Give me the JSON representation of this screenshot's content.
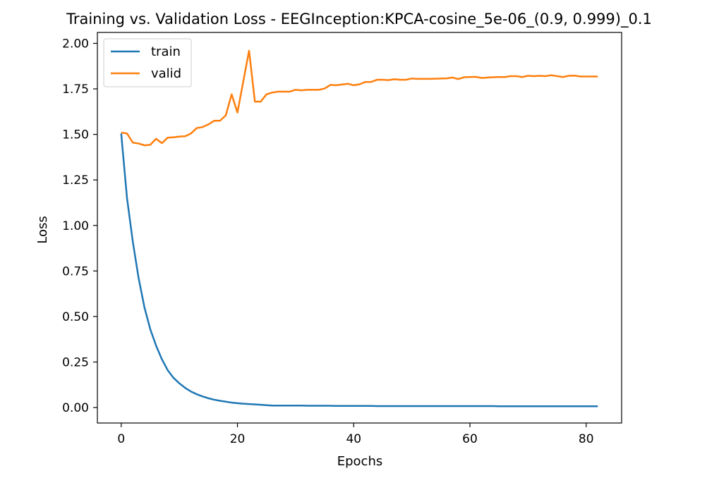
{
  "chart_data": {
    "type": "line",
    "title": "Training vs. Validation Loss - EEGInception:KPCA-cosine_5e-06_(0.9, 0.999)_0.1",
    "xlabel": "Epochs",
    "ylabel": "Loss",
    "xlim": [
      -4.1,
      86.1
    ],
    "ylim": [
      -0.085,
      2.06
    ],
    "x_ticks": [
      0,
      20,
      40,
      60,
      80
    ],
    "x_tick_labels": [
      "0",
      "20",
      "40",
      "60",
      "80"
    ],
    "y_ticks": [
      0.0,
      0.25,
      0.5,
      0.75,
      1.0,
      1.25,
      1.5,
      1.75,
      2.0
    ],
    "y_tick_labels": [
      "0.00",
      "0.25",
      "0.50",
      "0.75",
      "1.00",
      "1.25",
      "1.50",
      "1.75",
      "2.00"
    ],
    "grid": false,
    "legend_position": "top-left",
    "series": [
      {
        "name": "train",
        "color": "#1f77b4",
        "values": [
          1.505,
          1.15,
          0.91,
          0.71,
          0.55,
          0.43,
          0.34,
          0.265,
          0.205,
          0.163,
          0.133,
          0.108,
          0.088,
          0.073,
          0.061,
          0.051,
          0.043,
          0.037,
          0.032,
          0.027,
          0.024,
          0.021,
          0.019,
          0.017,
          0.015,
          0.013,
          0.011,
          0.011,
          0.011,
          0.011,
          0.011,
          0.011,
          0.01,
          0.01,
          0.01,
          0.01,
          0.01,
          0.009,
          0.009,
          0.009,
          0.009,
          0.009,
          0.009,
          0.009,
          0.008,
          0.008,
          0.008,
          0.008,
          0.008,
          0.008,
          0.008,
          0.008,
          0.008,
          0.008,
          0.008,
          0.008,
          0.008,
          0.008,
          0.008,
          0.008,
          0.008,
          0.008,
          0.008,
          0.008,
          0.008,
          0.007,
          0.007,
          0.007,
          0.007,
          0.007,
          0.007,
          0.007,
          0.007,
          0.007,
          0.007,
          0.007,
          0.007,
          0.007,
          0.007,
          0.007,
          0.007,
          0.007,
          0.007
        ]
      },
      {
        "name": "valid",
        "color": "#ff7f0e",
        "values": [
          1.51,
          1.505,
          1.455,
          1.45,
          1.44,
          1.443,
          1.476,
          1.452,
          1.482,
          1.484,
          1.488,
          1.49,
          1.505,
          1.535,
          1.54,
          1.555,
          1.575,
          1.575,
          1.605,
          1.72,
          1.62,
          1.79,
          1.96,
          1.68,
          1.68,
          1.72,
          1.73,
          1.735,
          1.735,
          1.735,
          1.745,
          1.742,
          1.745,
          1.745,
          1.745,
          1.752,
          1.772,
          1.77,
          1.774,
          1.778,
          1.77,
          1.775,
          1.788,
          1.788,
          1.8,
          1.8,
          1.798,
          1.803,
          1.8,
          1.8,
          1.807,
          1.805,
          1.805,
          1.805,
          1.806,
          1.807,
          1.808,
          1.812,
          1.804,
          1.814,
          1.815,
          1.816,
          1.81,
          1.812,
          1.814,
          1.815,
          1.815,
          1.82,
          1.82,
          1.815,
          1.822,
          1.82,
          1.822,
          1.82,
          1.825,
          1.82,
          1.815,
          1.822,
          1.823,
          1.818,
          1.818,
          1.818,
          1.818
        ]
      }
    ]
  }
}
